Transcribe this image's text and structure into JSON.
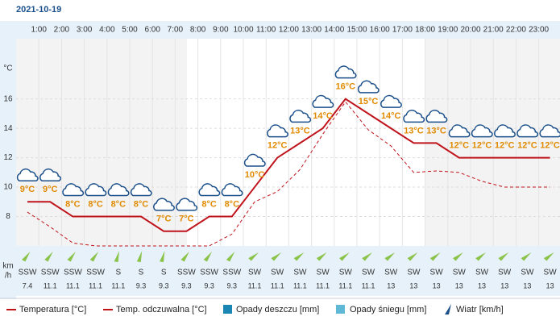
{
  "chart_data": {
    "type": "line",
    "title": "2021-10-19",
    "y_unit": "°C",
    "hour_labels": [
      "1:00",
      "2:00",
      "3:00",
      "4:00",
      "5:00",
      "6:00",
      "7:00",
      "8:00",
      "9:00",
      "10:00",
      "11:00",
      "12:00",
      "13:00",
      "14:00",
      "15:00",
      "16:00",
      "17:00",
      "18:00",
      "19:00",
      "20:00",
      "21:00",
      "22:00",
      "23:00"
    ],
    "ylim": [
      6,
      21.3
    ],
    "yticks": [
      8,
      10,
      12,
      14,
      16
    ],
    "grid": true,
    "series": [
      {
        "name": "Temperatura [°C]",
        "color": "#c0141c",
        "values": [
          9,
          9,
          8,
          8,
          8,
          8,
          7,
          7,
          8,
          8,
          10,
          12,
          13,
          14,
          16,
          15,
          14,
          13,
          13,
          12,
          12,
          12,
          12,
          12
        ],
        "value_labels": [
          "9°C",
          "9°C",
          "8°C",
          "8°C",
          "8°C",
          "8°C",
          "7°C",
          "7°C",
          "8°C",
          "8°C",
          "10°C",
          "12°C",
          "13°C",
          "14°C",
          "16°C",
          "15°C",
          "14°C",
          "13°C",
          "13°C",
          "12°C",
          "12°C",
          "12°C",
          "12°C",
          "12°C"
        ]
      },
      {
        "name": "Temp. odczuwalna [°C]",
        "color": "#c0141c",
        "dashed": true,
        "values": [
          8.3,
          7.3,
          6.2,
          6,
          6,
          6,
          6,
          6,
          6,
          6.8,
          9,
          9.7,
          11.2,
          13.6,
          15.8,
          13.9,
          12.8,
          11,
          11.1,
          11,
          10.4,
          10,
          10,
          10
        ]
      }
    ],
    "wind_unit": [
      "km",
      "/h"
    ],
    "wind_direction": [
      "SSW",
      "SSW",
      "SSW",
      "SSW",
      "S",
      "S",
      "S",
      "SSW",
      "SSW",
      "SSW",
      "SW",
      "SW",
      "SW",
      "SW",
      "SW",
      "SW",
      "SW",
      "SW",
      "SW",
      "SW",
      "SW",
      "SW",
      "SW",
      "SW"
    ],
    "wind_speed": [
      7.4,
      11.1,
      11.1,
      11.1,
      11.1,
      9.3,
      9.3,
      9.3,
      9.3,
      9.3,
      11.1,
      11.1,
      11.1,
      11.1,
      11.1,
      11.1,
      13,
      13,
      13,
      13,
      13,
      13,
      13,
      13
    ],
    "legend_extra": [
      "Opady deszczu [mm]",
      "Opady śniegu [mm]",
      "Wiatr [km/h]"
    ]
  }
}
